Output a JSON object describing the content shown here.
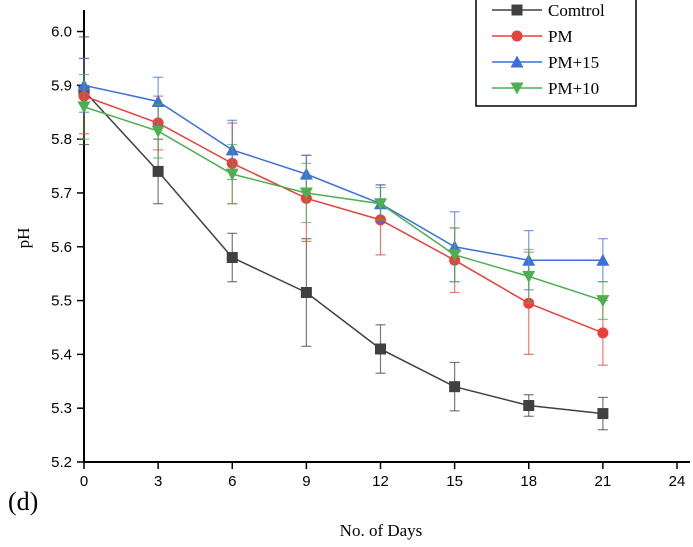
{
  "chart_data": {
    "type": "line",
    "panel_label": "(d)",
    "xlabel": "No. of Days",
    "ylabel": "pH",
    "xlim": [
      0,
      24
    ],
    "ylim": [
      5.2,
      6.04
    ],
    "xticks": [
      0,
      3,
      6,
      9,
      12,
      15,
      18,
      21,
      24
    ],
    "yticks": [
      5.2,
      5.3,
      5.4,
      5.5,
      5.6,
      5.7,
      5.8,
      5.9,
      6.0
    ],
    "xtick_labels": [
      "0",
      "3",
      "6",
      "9",
      "12",
      "15",
      "18",
      "21",
      "24"
    ],
    "ytick_labels": [
      "5.2",
      "5.3",
      "5.4",
      "5.5",
      "5.6",
      "5.7",
      "5.8",
      "5.9",
      "6.0"
    ],
    "grid": false,
    "legend_position": "top-right",
    "x": [
      0,
      3,
      6,
      9,
      12,
      15,
      18,
      21
    ],
    "series": [
      {
        "name": "Comtrol",
        "color": "#404040",
        "marker": "square",
        "values": [
          5.89,
          5.74,
          5.58,
          5.515,
          5.41,
          5.34,
          5.305,
          5.29
        ],
        "errors": [
          0.1,
          0.06,
          0.045,
          0.1,
          0.045,
          0.045,
          0.02,
          0.03
        ]
      },
      {
        "name": "PM",
        "color": "#e8403a",
        "marker": "circle",
        "values": [
          5.88,
          5.83,
          5.755,
          5.69,
          5.65,
          5.575,
          5.495,
          5.44
        ],
        "errors": [
          0.07,
          0.05,
          0.075,
          0.08,
          0.065,
          0.06,
          0.095,
          0.06
        ]
      },
      {
        "name": "PM+15",
        "color": "#3f6fd8",
        "marker": "triangle-up",
        "values": [
          5.9,
          5.87,
          5.78,
          5.735,
          5.68,
          5.6,
          5.575,
          5.575
        ],
        "errors": [
          0.05,
          0.045,
          0.055,
          0.035,
          0.035,
          0.065,
          0.055,
          0.04
        ]
      },
      {
        "name": "PM+10",
        "color": "#4caf50",
        "marker": "triangle-down",
        "values": [
          5.86,
          5.815,
          5.735,
          5.7,
          5.68,
          5.585,
          5.545,
          5.5
        ],
        "errors": [
          0.06,
          0.05,
          0.055,
          0.055,
          0.03,
          0.05,
          0.05,
          0.035
        ]
      }
    ]
  }
}
